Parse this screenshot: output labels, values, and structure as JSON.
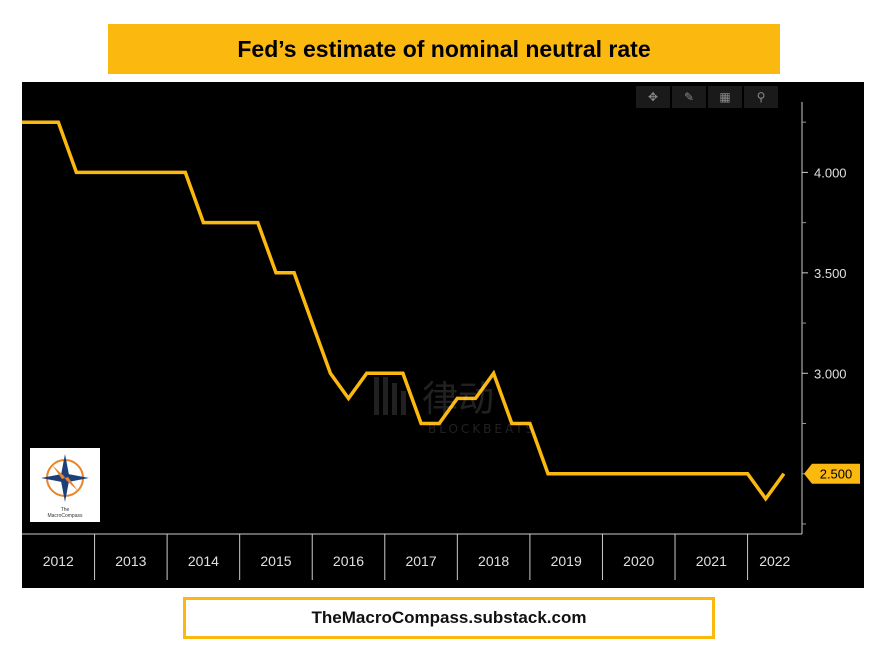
{
  "title": "Fed’s estimate of nominal neutral rate",
  "footer": "TheMacroCompass.substack.com",
  "watermark": {
    "cn": "律动",
    "en": "BLOCKBEATS"
  },
  "logo": {
    "line1": "The",
    "line2": "MacroCompass"
  },
  "toolbar": {
    "icons": [
      "crosshair-icon",
      "pencil-icon",
      "calendar-icon",
      "zoom-icon"
    ]
  },
  "colors": {
    "line": "#fbb80f",
    "background": "#000000",
    "accent": "#fbb80f"
  },
  "chart_data": {
    "type": "line",
    "title": "Fed’s estimate of nominal neutral rate",
    "xlabel": "",
    "ylabel": "",
    "x_tick_labels": [
      "2012",
      "2013",
      "2014",
      "2015",
      "2016",
      "2017",
      "2018",
      "2019",
      "2020",
      "2021",
      "2022"
    ],
    "y_tick_labels": [
      "4.000",
      "3.500",
      "3.000"
    ],
    "y_ticks": [
      4.0,
      3.5,
      3.0
    ],
    "ylim": [
      2.2,
      4.45
    ],
    "xlim": [
      2012.0,
      2022.75
    ],
    "last_value_label": "2.500",
    "grid": false,
    "series": [
      {
        "x": [
          2012.0,
          2012.25,
          2012.5,
          2012.75,
          2013.0,
          2013.25,
          2013.5,
          2013.75,
          2014.0,
          2014.25,
          2014.5,
          2014.75,
          2015.0,
          2015.25,
          2015.5,
          2015.75,
          2016.0,
          2016.25,
          2016.5,
          2016.75,
          2017.0,
          2017.25,
          2017.5,
          2017.75,
          2018.0,
          2018.25,
          2018.5,
          2018.75,
          2019.0,
          2019.25,
          2019.5,
          2019.75,
          2020.0,
          2020.25,
          2020.5,
          2020.75,
          2021.0,
          2021.25,
          2021.5,
          2021.75,
          2022.0,
          2022.25,
          2022.5
        ],
        "values": [
          4.25,
          4.25,
          4.25,
          4.0,
          4.0,
          4.0,
          4.0,
          4.0,
          4.0,
          4.0,
          3.75,
          3.75,
          3.75,
          3.75,
          3.5,
          3.5,
          3.25,
          3.0,
          2.875,
          3.0,
          3.0,
          3.0,
          2.75,
          2.75,
          2.875,
          2.875,
          3.0,
          2.75,
          2.75,
          2.5,
          2.5,
          2.5,
          2.5,
          2.5,
          2.5,
          2.5,
          2.5,
          2.5,
          2.5,
          2.5,
          2.5,
          2.375,
          2.5
        ]
      }
    ]
  }
}
